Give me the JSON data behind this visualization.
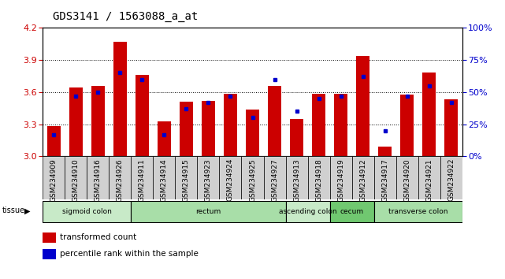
{
  "title": "GDS3141 / 1563088_a_at",
  "samples": [
    "GSM234909",
    "GSM234910",
    "GSM234916",
    "GSM234926",
    "GSM234911",
    "GSM234914",
    "GSM234915",
    "GSM234923",
    "GSM234924",
    "GSM234925",
    "GSM234927",
    "GSM234913",
    "GSM234918",
    "GSM234919",
    "GSM234912",
    "GSM234917",
    "GSM234920",
    "GSM234921",
    "GSM234922"
  ],
  "red_values": [
    3.285,
    3.645,
    3.655,
    4.07,
    3.76,
    3.325,
    3.51,
    3.515,
    3.585,
    3.44,
    3.655,
    3.345,
    3.585,
    3.585,
    3.935,
    3.09,
    3.58,
    3.78,
    3.535
  ],
  "blue_values_pct": [
    17,
    47,
    50,
    65,
    60,
    17,
    37,
    42,
    47,
    30,
    60,
    35,
    45,
    47,
    62,
    20,
    47,
    55,
    42
  ],
  "ymin": 3.0,
  "ymax": 4.2,
  "yticks": [
    3.0,
    3.3,
    3.6,
    3.9,
    4.2
  ],
  "right_yticks": [
    0,
    25,
    50,
    75,
    100
  ],
  "tissue_groups": [
    {
      "label": "sigmoid colon",
      "start": 0,
      "end": 4,
      "color": "#c8eac8"
    },
    {
      "label": "rectum",
      "start": 4,
      "end": 11,
      "color": "#a8dea8"
    },
    {
      "label": "ascending colon",
      "start": 11,
      "end": 13,
      "color": "#c8eac8"
    },
    {
      "label": "cecum",
      "start": 13,
      "end": 15,
      "color": "#70c870"
    },
    {
      "label": "transverse colon",
      "start": 15,
      "end": 19,
      "color": "#a8dea8"
    }
  ],
  "bar_color": "#cc0000",
  "blue_color": "#0000cc",
  "bar_width": 0.6,
  "bg_color": "#ffffff",
  "left_label_color": "#cc0000",
  "right_label_color": "#0000cc",
  "tick_label_size": 6.5,
  "title_fontsize": 10,
  "sample_box_color": "#d0d0d0",
  "n_samples": 19
}
